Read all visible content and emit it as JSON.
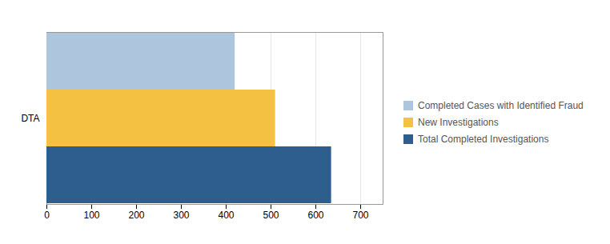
{
  "chart_data": {
    "type": "bar",
    "orientation": "horizontal",
    "categories": [
      "DTA"
    ],
    "series": [
      {
        "name": "Completed Cases with Identified Fraud",
        "color": "#adc6de",
        "values": [
          420
        ]
      },
      {
        "name": "New Investigations",
        "color": "#f5c142",
        "values": [
          510
        ]
      },
      {
        "name": "Total Completed Investigations",
        "color": "#2e5e8e",
        "values": [
          635
        ]
      }
    ],
    "xlim": [
      0,
      750
    ],
    "xticks": [
      0,
      100,
      200,
      300,
      400,
      500,
      600,
      700
    ],
    "grid": true,
    "legend": "right"
  }
}
